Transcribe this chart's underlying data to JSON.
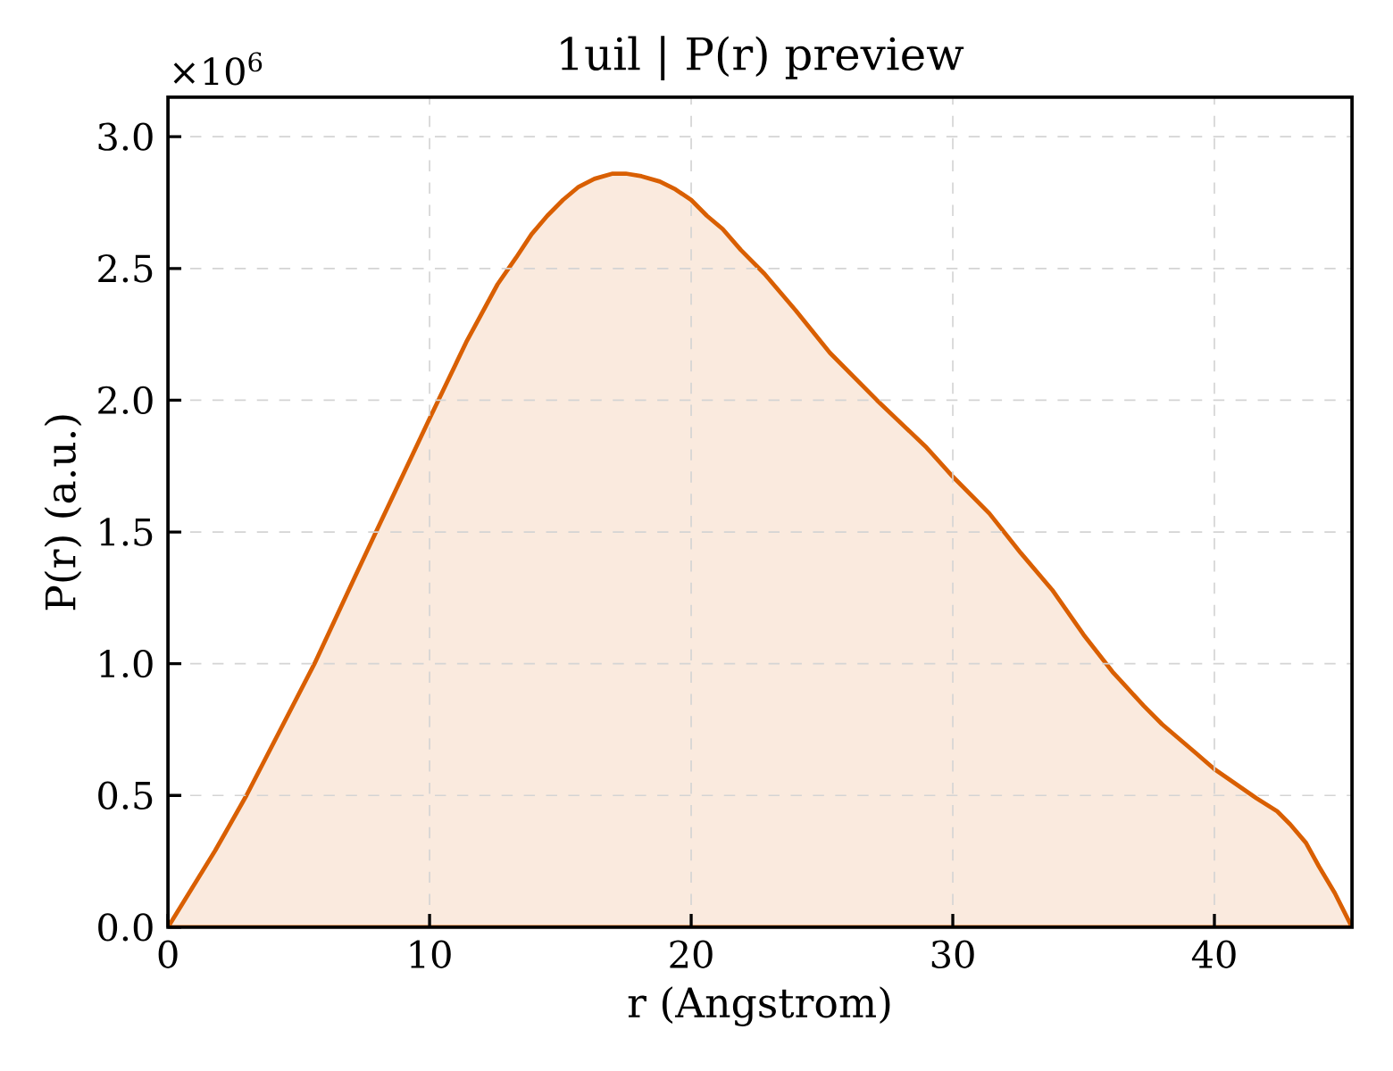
{
  "chart_data": {
    "type": "area",
    "title": "1uil | P(r) preview",
    "xlabel": "r (Angstrom)",
    "ylabel": "P(r) (a.u.)",
    "annotations": [
      "×10$^{6}$"
    ],
    "x": [
      0,
      1.8,
      3.0,
      5.6,
      7.1,
      8.0,
      10.0,
      11.4,
      12.6,
      13.3,
      13.9,
      14.5,
      15.1,
      15.7,
      16.3,
      17.0,
      17.5,
      18.1,
      18.8,
      19.4,
      20.0,
      20.6,
      21.2,
      21.9,
      22.8,
      24.0,
      25.3,
      27.1,
      29.0,
      30.0,
      31.4,
      32.6,
      33.8,
      35.0,
      36.1,
      37.3,
      38.0,
      39.3,
      40.0,
      41.6,
      42.4,
      42.9,
      43.5,
      44.0,
      44.6,
      45.26
    ],
    "series": [
      {
        "color": "#d95f02",
        "values": [
          0,
          0.29,
          0.5,
          1.0,
          1.32,
          1.51,
          1.93,
          2.22,
          2.44,
          2.54,
          2.63,
          2.7,
          2.76,
          2.81,
          2.84,
          2.86,
          2.86,
          2.85,
          2.83,
          2.8,
          2.76,
          2.7,
          2.65,
          2.57,
          2.48,
          2.34,
          2.18,
          2.0,
          1.82,
          1.71,
          1.57,
          1.42,
          1.28,
          1.11,
          0.97,
          0.84,
          0.77,
          0.66,
          0.6,
          0.49,
          0.44,
          0.39,
          0.32,
          0.23,
          0.13,
          0
        ]
      }
    ],
    "xlim": [
      0,
      45.26
    ],
    "ylim": [
      0,
      3.15
    ],
    "xticks": [
      0,
      10,
      20,
      30,
      40
    ],
    "yticks": [
      {
        "value": 0,
        "label": "0.0"
      },
      {
        "value": 0.5,
        "label": "0.5"
      },
      {
        "value": 1,
        "label": "1.0"
      },
      {
        "value": 1.5,
        "label": "1.5"
      },
      {
        "value": 2,
        "label": "2.0"
      },
      {
        "value": 2.5,
        "label": "2.5"
      },
      {
        "value": 3,
        "label": "3.0"
      }
    ],
    "grid": true
  }
}
